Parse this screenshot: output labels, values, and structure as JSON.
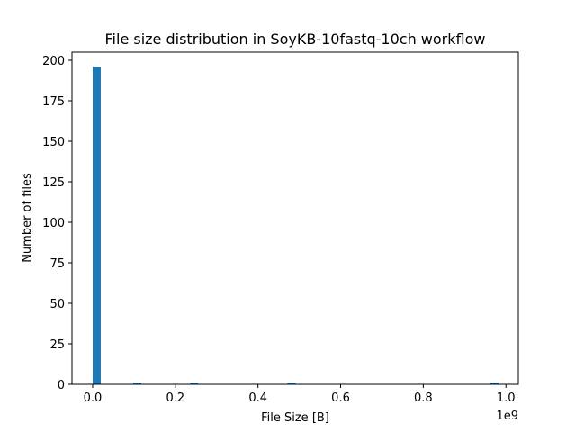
{
  "chart_data": {
    "type": "bar",
    "title": "File size distribution in SoyKB-10fastq-10ch workflow",
    "xlabel": "File Size [B]",
    "ylabel": "Number of files",
    "x_offset_text": "1e9",
    "xlim": [
      -0.05,
      1.03
    ],
    "ylim": [
      0,
      205
    ],
    "x_ticks": [
      0.0,
      0.2,
      0.4,
      0.6,
      0.8,
      1.0
    ],
    "x_tick_labels": [
      "0.0",
      "0.2",
      "0.4",
      "0.6",
      "0.8",
      "1.0"
    ],
    "y_ticks": [
      0,
      25,
      50,
      75,
      100,
      125,
      150,
      175,
      200
    ],
    "y_tick_labels": [
      "0",
      "25",
      "50",
      "75",
      "100",
      "125",
      "150",
      "175",
      "200"
    ],
    "bin_width": 0.0196,
    "bins": [
      {
        "x_start": 0.0,
        "count": 196
      },
      {
        "x_start": 0.0982,
        "count": 1
      },
      {
        "x_start": 0.2357,
        "count": 1
      },
      {
        "x_start": 0.4714,
        "count": 1
      },
      {
        "x_start": 0.9625,
        "count": 1
      }
    ],
    "bar_color": "#1f77b4",
    "grid": false
  }
}
